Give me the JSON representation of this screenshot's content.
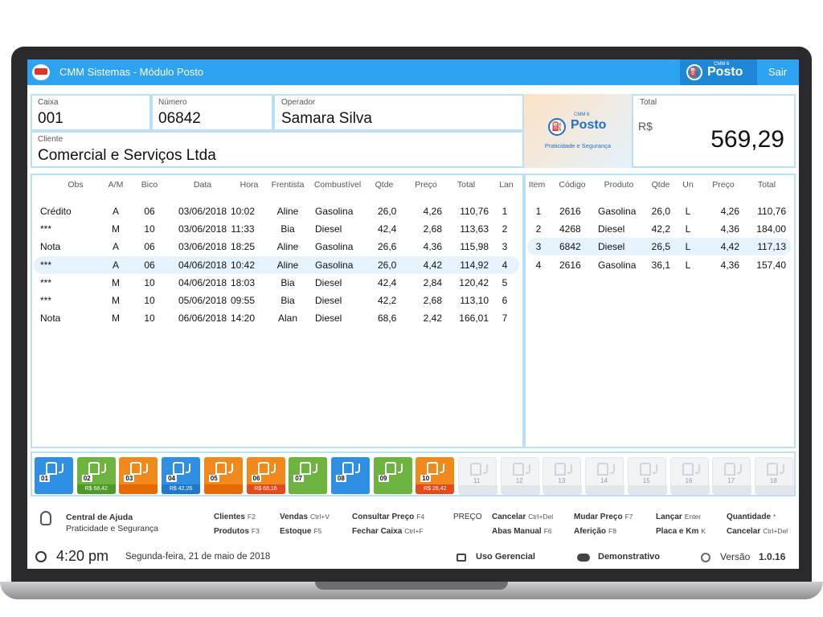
{
  "titlebar": {
    "title": "CMM Sistemas - Módulo Posto",
    "brand_small": "CMM 6",
    "brand": "Posto",
    "exit_label": "Sair"
  },
  "header": {
    "caixa_label": "Caixa",
    "caixa": "001",
    "numero_label": "Número",
    "numero": "06842",
    "operador_label": "Operador",
    "operador": "Samara Silva",
    "cliente_label": "Cliente",
    "cliente": "Comercial e Serviços Ltda",
    "logo_small": "CMM 6",
    "logo_brand": "Posto",
    "logo_tagline": "Praticidade e Segurança",
    "total_label": "Total",
    "currency": "R$",
    "total": "569,29"
  },
  "abastecimentos": {
    "columns": [
      "Obs",
      "A/M",
      "Bico",
      "Data",
      "Hora",
      "Frentista",
      "Combustível",
      "Qtde",
      "Preço",
      "Total",
      "Lan"
    ],
    "rows": [
      [
        "Crédito",
        "A",
        "06",
        "03/06/2018",
        "10:02",
        "Aline",
        "Gasolina",
        "26,0",
        "4,26",
        "110,76",
        "1"
      ],
      [
        "***",
        "M",
        "10",
        "03/06/2018",
        "11:33",
        "Bia",
        "Diesel",
        "42,4",
        "2,68",
        "113,63",
        "2"
      ],
      [
        "Nota",
        "A",
        "06",
        "03/06/2018",
        "18:25",
        "Aline",
        "Gasolina",
        "26,6",
        "4,36",
        "115,98",
        "3"
      ],
      [
        "***",
        "A",
        "06",
        "04/06/2018",
        "10:42",
        "Aline",
        "Gasolina",
        "26,0",
        "4,42",
        "114,92",
        "4"
      ],
      [
        "***",
        "M",
        "10",
        "04/06/2018",
        "18:03",
        "Bia",
        "Diesel",
        "42,4",
        "2,84",
        "120,42",
        "5"
      ],
      [
        "***",
        "M",
        "10",
        "05/06/2018",
        "09:55",
        "Bia",
        "Diesel",
        "42,2",
        "2,68",
        "113,10",
        "6"
      ],
      [
        "Nota",
        "M",
        "10",
        "06/06/2018",
        "14:20",
        "Alan",
        "Diesel",
        "68,6",
        "2,42",
        "166,01",
        "7"
      ]
    ]
  },
  "itens": {
    "columns": [
      "Item",
      "Código",
      "Produto",
      "Qtde",
      "Un",
      "Preço",
      "Total"
    ],
    "rows": [
      [
        "1",
        "2616",
        "Gasolina",
        "26,0",
        "L",
        "4,26",
        "110,76"
      ],
      [
        "2",
        "4268",
        "Diesel",
        "42,2",
        "L",
        "4,36",
        "184,00"
      ],
      [
        "3",
        "6842",
        "Diesel",
        "26,5",
        "L",
        "4,42",
        "117,13"
      ],
      [
        "4",
        "2616",
        "Gasolina",
        "36,1",
        "L",
        "4,36",
        "157,40"
      ]
    ]
  },
  "pumps": [
    {
      "num": "01",
      "value": "",
      "color": "#2f8fe3",
      "strip": "#2f8fe3"
    },
    {
      "num": "02",
      "value": "R$ 68,42",
      "color": "#6cb33f",
      "strip": "#4d9a2a"
    },
    {
      "num": "03",
      "value": "",
      "color": "#f08a1c",
      "strip": "#e66a00"
    },
    {
      "num": "04",
      "value": "R$ 42,26",
      "color": "#2f8fe3",
      "strip": "#1f78c8"
    },
    {
      "num": "05",
      "value": "",
      "color": "#f08a1c",
      "strip": "#e66a00"
    },
    {
      "num": "06",
      "value": "R$ 68,16",
      "color": "#f08a1c",
      "strip": "#e64a1a"
    },
    {
      "num": "07",
      "value": "",
      "color": "#6cb33f",
      "strip": "#6cb33f"
    },
    {
      "num": "08",
      "value": "",
      "color": "#2f8fe3",
      "strip": "#2f8fe3"
    },
    {
      "num": "09",
      "value": "",
      "color": "#6cb33f",
      "strip": "#6cb33f"
    },
    {
      "num": "10",
      "value": "R$ 26,42",
      "color": "#f08a1c",
      "strip": "#e64a1a"
    },
    {
      "num": "11",
      "value": "",
      "color": "#f1f3f5",
      "strip": "#e2e6ea"
    },
    {
      "num": "12",
      "value": "",
      "color": "#f1f3f5",
      "strip": "#e2e6ea"
    },
    {
      "num": "13",
      "value": "",
      "color": "#f1f3f5",
      "strip": "#e2e6ea"
    },
    {
      "num": "14",
      "value": "",
      "color": "#f1f3f5",
      "strip": "#e2e6ea"
    },
    {
      "num": "15",
      "value": "",
      "color": "#f1f3f5",
      "strip": "#e2e6ea"
    },
    {
      "num": "16",
      "value": "",
      "color": "#f1f3f5",
      "strip": "#e2e6ea"
    },
    {
      "num": "17",
      "value": "",
      "color": "#f1f3f5",
      "strip": "#e2e6ea"
    },
    {
      "num": "18",
      "value": "",
      "color": "#f1f3f5",
      "strip": "#e2e6ea"
    }
  ],
  "help": {
    "title": "Central de Ajuda",
    "subtitle": "Praticidade e Segurança"
  },
  "shortcuts": [
    {
      "label": "Clientes",
      "key": "F2"
    },
    {
      "label": "Produtos",
      "key": "F3"
    },
    {
      "label": "Vendas",
      "key": "Ctrl+V"
    },
    {
      "label": "Estoque",
      "key": "F5"
    },
    {
      "label": "Consultar Preço",
      "key": "F4"
    },
    {
      "label": "Fechar Caixa",
      "key": "Ctrl+F"
    },
    {
      "label": "PREÇO",
      "key": ""
    },
    {
      "label": "Cancelar",
      "key": "Ctrl+Del"
    },
    {
      "label": "Abas Manual",
      "key": "F6"
    },
    {
      "label": "Mudar Preço",
      "key": "F7"
    },
    {
      "label": "Aferição",
      "key": "F8"
    },
    {
      "label": "Lançar",
      "key": "Enter"
    },
    {
      "label": "Placa e Km",
      "key": "K"
    },
    {
      "label": "Quantidade",
      "key": "*"
    },
    {
      "label": "Cancelar",
      "key": "Ctrl+Del"
    }
  ],
  "status": {
    "time": "4:20 pm",
    "date": "Segunda-feira, 21 de maio de 2018",
    "manager": "Uso Gerencial",
    "demo": "Demonstrativo",
    "version_label": "Versão",
    "version": "1.0.16"
  }
}
